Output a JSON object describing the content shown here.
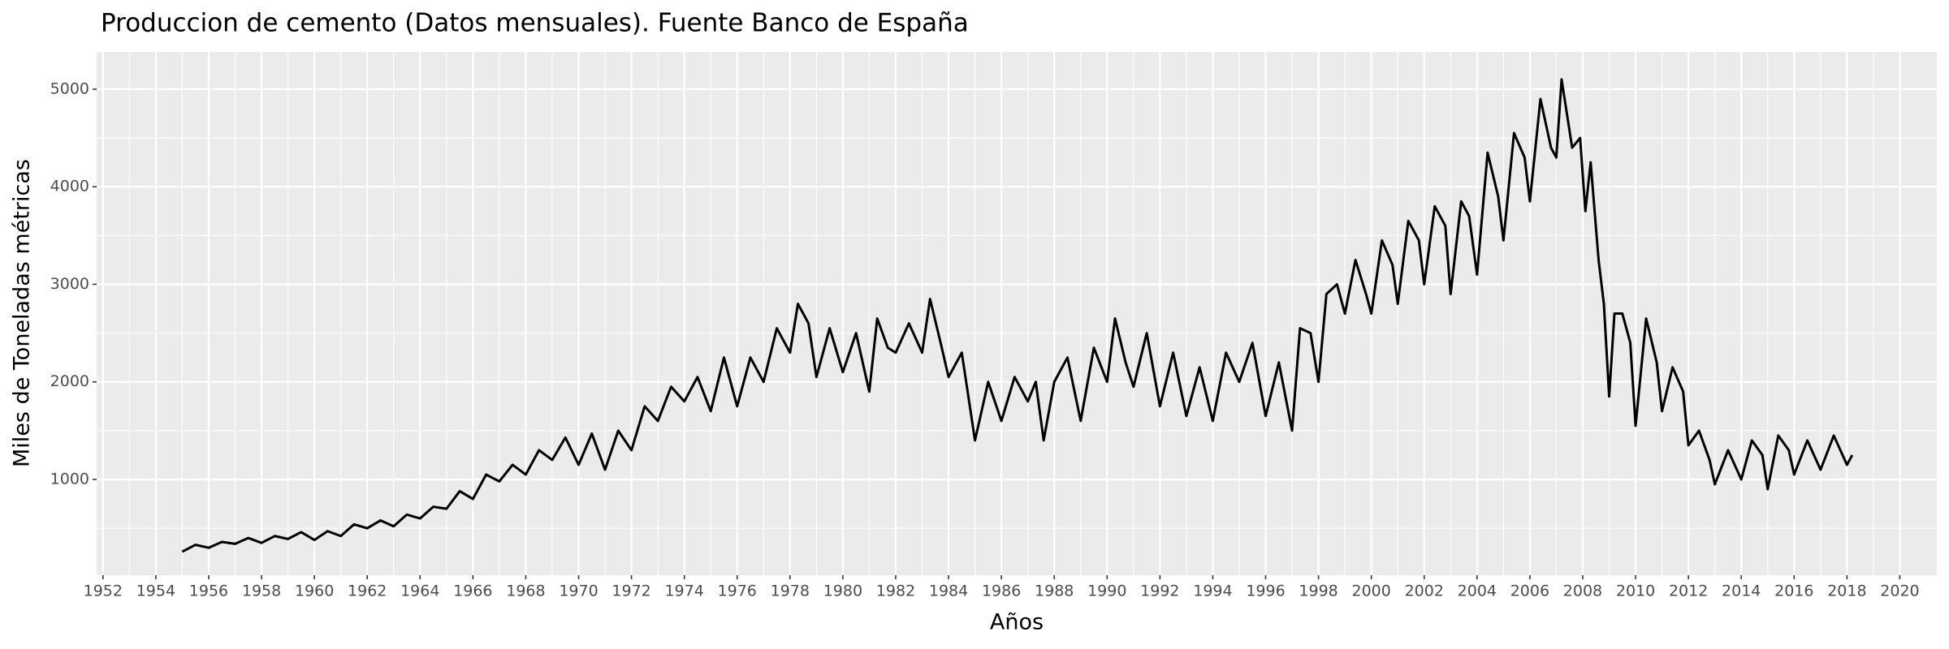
{
  "chart_data": {
    "type": "line",
    "title": "Produccion de cemento (Datos mensuales). Fuente Banco de España",
    "x_label": "Años",
    "y_label": "Miles de Toneladas métricas",
    "grid": true,
    "xlim": [
      1951.76,
      2021.4
    ],
    "ylim": [
      19,
      5382
    ],
    "xticks": [
      1952,
      1954,
      1956,
      1958,
      1960,
      1962,
      1964,
      1966,
      1968,
      1970,
      1972,
      1974,
      1976,
      1978,
      1980,
      1982,
      1984,
      1986,
      1988,
      1990,
      1992,
      1994,
      1996,
      1998,
      2000,
      2002,
      2004,
      2006,
      2008,
      2010,
      2012,
      2014,
      2016,
      2018,
      2020
    ],
    "yticks": [
      1000,
      2000,
      3000,
      4000,
      5000
    ],
    "x": [
      1955,
      1955.5,
      1956,
      1956.5,
      1957,
      1957.5,
      1958,
      1958.5,
      1959,
      1959.5,
      1960,
      1960.5,
      1961,
      1961.5,
      1962,
      1962.5,
      1963,
      1963.5,
      1964,
      1964.5,
      1965,
      1965.5,
      1966,
      1966.5,
      1967,
      1967.5,
      1968,
      1968.5,
      1969,
      1969.5,
      1970,
      1970.5,
      1971,
      1971.5,
      1972,
      1972.5,
      1973,
      1973.5,
      1974,
      1974.5,
      1975,
      1975.5,
      1976,
      1976.5,
      1977,
      1977.5,
      1978,
      1978.3,
      1978.7,
      1979,
      1979.5,
      1980,
      1980.5,
      1981,
      1981.3,
      1981.7,
      1982,
      1982.5,
      1983,
      1983.3,
      1983.7,
      1984,
      1984.5,
      1985,
      1985.5,
      1986,
      1986.5,
      1987,
      1987.3,
      1987.6,
      1988,
      1988.5,
      1989,
      1989.5,
      1990,
      1990.3,
      1990.7,
      1991,
      1991.5,
      1992,
      1992.5,
      1993,
      1993.5,
      1994,
      1994.5,
      1995,
      1995.5,
      1996,
      1996.5,
      1997,
      1997.3,
      1997.7,
      1998,
      1998.3,
      1998.7,
      1999,
      1999.4,
      1999.8,
      2000,
      2000.4,
      2000.8,
      2001,
      2001.4,
      2001.8,
      2002,
      2002.4,
      2002.8,
      2003,
      2003.4,
      2003.7,
      2004,
      2004.4,
      2004.8,
      2005,
      2005.4,
      2005.8,
      2006,
      2006.4,
      2006.8,
      2007,
      2007.2,
      2007.6,
      2007.9,
      2008.1,
      2008.3,
      2008.6,
      2008.8,
      2009,
      2009.2,
      2009.5,
      2009.8,
      2010,
      2010.4,
      2010.8,
      2011,
      2011.4,
      2011.8,
      2012,
      2012.4,
      2012.8,
      2013,
      2013.5,
      2014,
      2014.4,
      2014.8,
      2015,
      2015.4,
      2015.8,
      2016,
      2016.5,
      2017,
      2017.5,
      2018,
      2018.2
    ],
    "series": [
      {
        "name": "Produccion",
        "color": "#000000",
        "values": [
          260,
          330,
          300,
          360,
          340,
          400,
          350,
          420,
          390,
          460,
          380,
          470,
          420,
          540,
          500,
          580,
          520,
          640,
          600,
          720,
          700,
          880,
          800,
          1050,
          980,
          1150,
          1050,
          1300,
          1200,
          1430,
          1150,
          1470,
          1100,
          1500,
          1300,
          1750,
          1600,
          1950,
          1800,
          2050,
          1700,
          2250,
          1750,
          2250,
          2000,
          2550,
          2300,
          2800,
          2600,
          2050,
          2550,
          2100,
          2500,
          1900,
          2650,
          2350,
          2300,
          2600,
          2300,
          2850,
          2400,
          2050,
          2300,
          1400,
          2000,
          1600,
          2050,
          1800,
          2000,
          1400,
          2000,
          2250,
          1600,
          2350,
          2000,
          2650,
          2200,
          1950,
          2500,
          1750,
          2300,
          1650,
          2150,
          1600,
          2300,
          2000,
          2400,
          1650,
          2200,
          1500,
          2550,
          2500,
          2000,
          2900,
          3000,
          2700,
          3250,
          2900,
          2700,
          3450,
          3200,
          2800,
          3650,
          3450,
          3000,
          3800,
          3600,
          2900,
          3850,
          3700,
          3100,
          4350,
          3900,
          3450,
          4550,
          4300,
          3850,
          4900,
          4400,
          4300,
          5100,
          4400,
          4500,
          3750,
          4250,
          3250,
          2800,
          1850,
          2700,
          2700,
          2400,
          1550,
          2650,
          2200,
          1700,
          2150,
          1900,
          1350,
          1500,
          1200,
          950,
          1300,
          1000,
          1400,
          1250,
          900,
          1450,
          1300,
          1050,
          1400,
          1100,
          1450,
          1150,
          1250
        ]
      }
    ]
  }
}
